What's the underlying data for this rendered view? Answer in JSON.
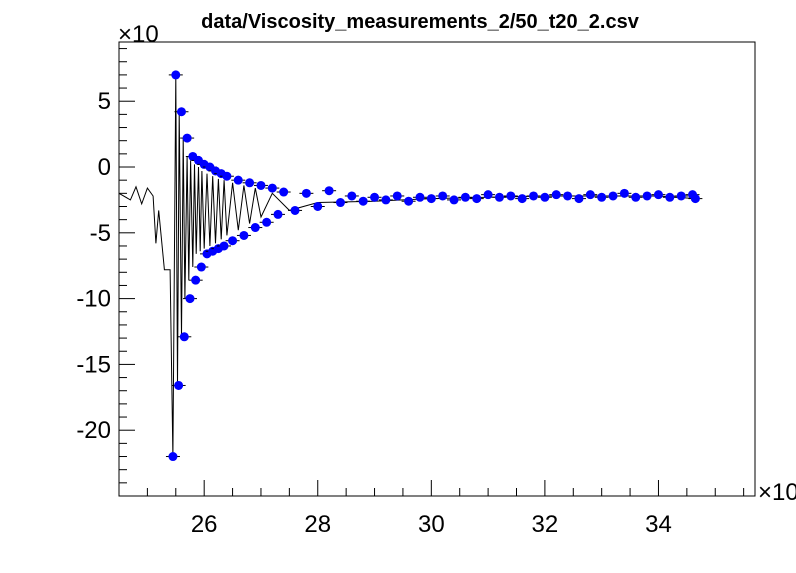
{
  "chart_data": {
    "type": "scatter",
    "title": "data/Viscosity_measurements_2/50_t20_2.csv",
    "xlabel": "",
    "ylabel": "",
    "x_exponent_label": "×10",
    "y_exponent_label": "×10",
    "xlim": [
      24.5,
      35.7
    ],
    "ylim": [
      -25,
      9.5
    ],
    "x_ticks": [
      26,
      28,
      30,
      32,
      34
    ],
    "x_tick_labels": [
      "26",
      "28",
      "30",
      "32",
      "34"
    ],
    "y_ticks": [
      5,
      0,
      -5,
      -10,
      -15,
      -20
    ],
    "y_tick_labels": [
      "5",
      "0",
      "-5",
      "-10",
      "-15",
      "-20"
    ],
    "grid": false,
    "legend": "none",
    "series": [
      {
        "kind": "line",
        "color": "#000000",
        "x": [
          24.5,
          24.7,
          24.8,
          24.9,
          25.0,
          25.1,
          25.15,
          25.2,
          25.3,
          25.35,
          25.4,
          25.45,
          25.5,
          25.53,
          25.56,
          25.6,
          25.63,
          25.66,
          25.7,
          25.73,
          25.76,
          25.8,
          25.83,
          25.86,
          25.9,
          25.93,
          25.96,
          26.0,
          26.05,
          26.1,
          26.15,
          26.2,
          26.25,
          26.3,
          26.35,
          26.4,
          26.5,
          26.6,
          26.7,
          26.8,
          26.9,
          27.0,
          27.2,
          27.5,
          28.0,
          29.0,
          30.0,
          31.0,
          32.0,
          33.0,
          34.0,
          34.65
        ],
        "y": [
          -2.0,
          -2.5,
          -1.5,
          -2.8,
          -1.6,
          -2.2,
          -5.8,
          -3.3,
          -7.8,
          -7.8,
          -7.8,
          -22.0,
          7.0,
          -16.6,
          4.2,
          -12.9,
          2.2,
          -10.0,
          0.8,
          -8.6,
          0.5,
          -7.6,
          0.2,
          -6.6,
          0.0,
          -6.4,
          -0.3,
          -6.2,
          -0.5,
          -6.0,
          -0.7,
          -5.8,
          -0.9,
          -5.5,
          -1.0,
          -5.2,
          -1.2,
          -4.8,
          -1.4,
          -4.3,
          -1.6,
          -3.8,
          -2.0,
          -3.3,
          -2.7,
          -2.6,
          -2.4,
          -2.3,
          -2.2,
          -2.2,
          -2.2,
          -2.4
        ]
      },
      {
        "kind": "markers",
        "color": "#0000ff",
        "name": "",
        "x": [
          25.45,
          25.5,
          25.55,
          25.6,
          25.65,
          25.7,
          25.75,
          25.8,
          25.85,
          25.9,
          25.95,
          26.0,
          26.05,
          26.1,
          26.15,
          26.2,
          26.25,
          26.3,
          26.35,
          26.4,
          26.5,
          26.6,
          26.7,
          26.8,
          26.9,
          27.0,
          27.1,
          27.2,
          27.3,
          27.4,
          27.6,
          27.8,
          28.0,
          28.2,
          28.4,
          28.6,
          28.8,
          29.0,
          29.2,
          29.4,
          29.6,
          29.8,
          30.0,
          30.2,
          30.4,
          30.6,
          30.8,
          31.0,
          31.2,
          31.4,
          31.6,
          31.8,
          32.0,
          32.2,
          32.4,
          32.6,
          32.8,
          33.0,
          33.2,
          33.4,
          33.6,
          33.8,
          34.0,
          34.2,
          34.4,
          34.6,
          34.65
        ],
        "y": [
          -22.0,
          7.0,
          -16.6,
          4.2,
          -12.9,
          2.2,
          -10.0,
          0.8,
          -8.6,
          0.5,
          -7.6,
          0.2,
          -6.6,
          0.0,
          -6.4,
          -0.3,
          -6.2,
          -0.5,
          -6.0,
          -0.7,
          -5.6,
          -1.0,
          -5.2,
          -1.2,
          -4.6,
          -1.4,
          -4.2,
          -1.6,
          -3.6,
          -1.9,
          -3.3,
          -2.0,
          -3.0,
          -1.8,
          -2.7,
          -2.2,
          -2.6,
          -2.3,
          -2.5,
          -2.2,
          -2.6,
          -2.3,
          -2.4,
          -2.2,
          -2.5,
          -2.3,
          -2.4,
          -2.1,
          -2.3,
          -2.2,
          -2.4,
          -2.2,
          -2.3,
          -2.1,
          -2.2,
          -2.4,
          -2.1,
          -2.3,
          -2.2,
          -2.0,
          -2.3,
          -2.2,
          -2.1,
          -2.3,
          -2.2,
          -2.1,
          -2.4
        ]
      }
    ]
  }
}
